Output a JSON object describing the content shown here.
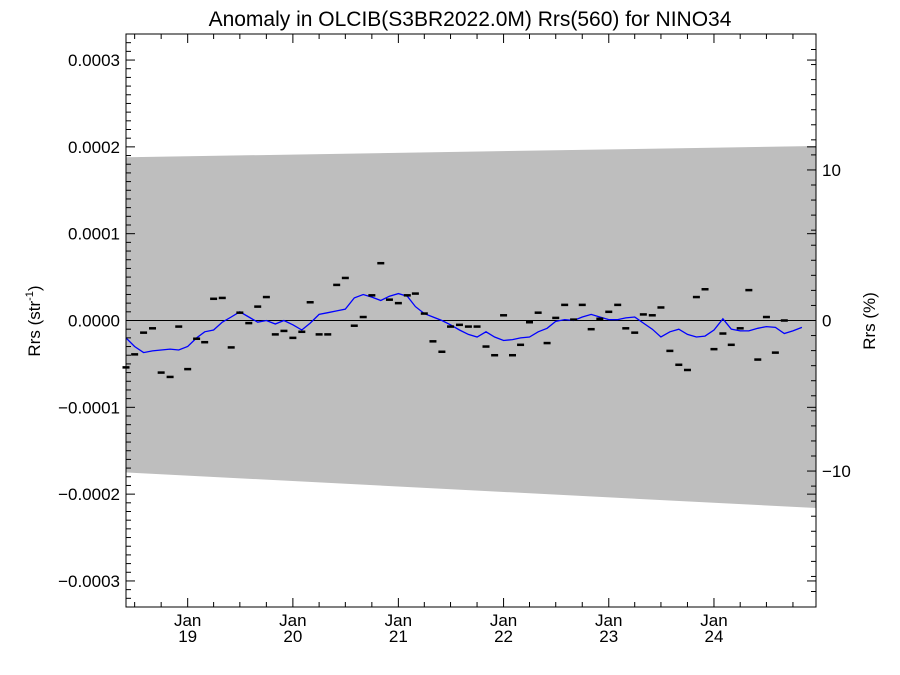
{
  "chart_data": {
    "type": "line",
    "title": "Anomaly in OLCIB(S3BR2022.0M) Rrs(560) for NINO34",
    "ylabel_left": "Rrs (str",
    "ylabel_left_sup": "-1",
    "ylabel_left_close": ")",
    "ylabel_right": "Rrs (%)",
    "xlim": [
      "2018-06-01",
      "2024-12-20"
    ],
    "ylim": [
      -0.00033,
      0.00033
    ],
    "ylim_right": [
      -19.03,
      19.03
    ],
    "y_ticks": [
      {
        "value": 0.0003,
        "label": "0.0003"
      },
      {
        "value": 0.0002,
        "label": "0.0002"
      },
      {
        "value": 0.0001,
        "label": "0.0001"
      },
      {
        "value": 0.0,
        "label": "0.0000"
      },
      {
        "value": -0.0001,
        "label": "−0.0001"
      },
      {
        "value": -0.0002,
        "label": "−0.0002"
      },
      {
        "value": -0.0003,
        "label": "−0.0003"
      }
    ],
    "y_right_ticks": [
      {
        "value": 10,
        "label": "10"
      },
      {
        "value": 0,
        "label": "0"
      },
      {
        "value": -10,
        "label": "−10"
      }
    ],
    "x_ticks": [
      {
        "value": "2019-01-01",
        "month": "Jan",
        "year": "19"
      },
      {
        "value": "2020-01-01",
        "month": "Jan",
        "year": "20"
      },
      {
        "value": "2021-01-01",
        "month": "Jan",
        "year": "21"
      },
      {
        "value": "2022-01-01",
        "month": "Jan",
        "year": "22"
      },
      {
        "value": "2023-01-01",
        "month": "Jan",
        "year": "23"
      },
      {
        "value": "2024-01-01",
        "month": "Jan",
        "year": "24"
      }
    ],
    "band": {
      "x": [
        "2018-06-01",
        "2024-12-20"
      ],
      "upper": [
        0.000188,
        0.000201
      ],
      "lower": [
        -0.000175,
        -0.000216
      ],
      "color": "#bebebe"
    },
    "zero_line": 0.0,
    "colors": {
      "smoothed": "#0000ff",
      "monthly": "#000000"
    },
    "monthly_anomalies": [
      {
        "x": "2018-06-01",
        "y": -5.4e-05
      },
      {
        "x": "2018-07-01",
        "y": -3.9e-05
      },
      {
        "x": "2018-08-01",
        "y": -1.4e-05
      },
      {
        "x": "2018-09-01",
        "y": -9e-06
      },
      {
        "x": "2018-10-01",
        "y": -6e-05
      },
      {
        "x": "2018-11-01",
        "y": -6.5e-05
      },
      {
        "x": "2018-12-01",
        "y": -7e-06
      },
      {
        "x": "2019-01-01",
        "y": -5.6e-05
      },
      {
        "x": "2019-02-01",
        "y": -2.1e-05
      },
      {
        "x": "2019-03-01",
        "y": -2.5e-05
      },
      {
        "x": "2019-04-01",
        "y": 2.5e-05
      },
      {
        "x": "2019-05-01",
        "y": 2.6e-05
      },
      {
        "x": "2019-06-01",
        "y": -3.1e-05
      },
      {
        "x": "2019-07-01",
        "y": 9e-06
      },
      {
        "x": "2019-08-01",
        "y": -3e-06
      },
      {
        "x": "2019-09-01",
        "y": 1.6e-05
      },
      {
        "x": "2019-10-01",
        "y": 2.7e-05
      },
      {
        "x": "2019-11-01",
        "y": -1.6e-05
      },
      {
        "x": "2019-12-01",
        "y": -1.2e-05
      },
      {
        "x": "2020-01-01",
        "y": -2e-05
      },
      {
        "x": "2020-02-01",
        "y": -1.3e-05
      },
      {
        "x": "2020-03-01",
        "y": 2.1e-05
      },
      {
        "x": "2020-04-01",
        "y": -1.6e-05
      },
      {
        "x": "2020-05-01",
        "y": -1.6e-05
      },
      {
        "x": "2020-06-01",
        "y": 4.1e-05
      },
      {
        "x": "2020-07-01",
        "y": 4.9e-05
      },
      {
        "x": "2020-08-01",
        "y": -6e-06
      },
      {
        "x": "2020-09-01",
        "y": 4e-06
      },
      {
        "x": "2020-10-01",
        "y": 2.9e-05
      },
      {
        "x": "2020-11-01",
        "y": 6.6e-05
      },
      {
        "x": "2020-12-01",
        "y": 2.4e-05
      },
      {
        "x": "2021-01-01",
        "y": 2e-05
      },
      {
        "x": "2021-02-01",
        "y": 2.9e-05
      },
      {
        "x": "2021-03-01",
        "y": 3.1e-05
      },
      {
        "x": "2021-04-01",
        "y": 8e-06
      },
      {
        "x": "2021-05-01",
        "y": -2.4e-05
      },
      {
        "x": "2021-06-01",
        "y": -3.6e-05
      },
      {
        "x": "2021-07-01",
        "y": -7e-06
      },
      {
        "x": "2021-08-01",
        "y": -5e-06
      },
      {
        "x": "2021-09-01",
        "y": -7e-06
      },
      {
        "x": "2021-10-01",
        "y": -7e-06
      },
      {
        "x": "2021-11-01",
        "y": -3e-05
      },
      {
        "x": "2021-12-01",
        "y": -4e-05
      },
      {
        "x": "2022-01-01",
        "y": 6e-06
      },
      {
        "x": "2022-02-01",
        "y": -4e-05
      },
      {
        "x": "2022-03-01",
        "y": -2.8e-05
      },
      {
        "x": "2022-04-01",
        "y": -2e-06
      },
      {
        "x": "2022-05-01",
        "y": 9e-06
      },
      {
        "x": "2022-06-01",
        "y": -2.6e-05
      },
      {
        "x": "2022-07-01",
        "y": 3e-06
      },
      {
        "x": "2022-08-01",
        "y": 1.8e-05
      },
      {
        "x": "2022-09-01",
        "y": 1e-06
      },
      {
        "x": "2022-10-01",
        "y": 1.8e-05
      },
      {
        "x": "2022-11-01",
        "y": -1e-05
      },
      {
        "x": "2022-12-01",
        "y": 2e-06
      },
      {
        "x": "2023-01-01",
        "y": 1e-05
      },
      {
        "x": "2023-02-01",
        "y": 1.8e-05
      },
      {
        "x": "2023-03-01",
        "y": -9e-06
      },
      {
        "x": "2023-04-01",
        "y": -1.4e-05
      },
      {
        "x": "2023-05-01",
        "y": 7e-06
      },
      {
        "x": "2023-06-01",
        "y": 6e-06
      },
      {
        "x": "2023-07-01",
        "y": 1.5e-05
      },
      {
        "x": "2023-08-01",
        "y": -3.5e-05
      },
      {
        "x": "2023-09-01",
        "y": -5.1e-05
      },
      {
        "x": "2023-10-01",
        "y": -5.7e-05
      },
      {
        "x": "2023-11-01",
        "y": 2.7e-05
      },
      {
        "x": "2023-12-01",
        "y": 3.6e-05
      },
      {
        "x": "2024-01-01",
        "y": -3.3e-05
      },
      {
        "x": "2024-02-01",
        "y": -1.5e-05
      },
      {
        "x": "2024-03-01",
        "y": -2.8e-05
      },
      {
        "x": "2024-04-01",
        "y": -9e-06
      },
      {
        "x": "2024-05-01",
        "y": 3.5e-05
      },
      {
        "x": "2024-06-01",
        "y": -4.5e-05
      },
      {
        "x": "2024-07-01",
        "y": 4e-06
      },
      {
        "x": "2024-08-01",
        "y": -3.7e-05
      },
      {
        "x": "2024-09-01",
        "y": 0.0
      }
    ],
    "smoothed_anomaly": [
      {
        "x": "2018-06-01",
        "y": -2e-05
      },
      {
        "x": "2018-07-01",
        "y": -3e-05
      },
      {
        "x": "2018-08-01",
        "y": -3.7e-05
      },
      {
        "x": "2018-09-01",
        "y": -3.5e-05
      },
      {
        "x": "2018-10-01",
        "y": -3.4e-05
      },
      {
        "x": "2018-11-01",
        "y": -3.3e-05
      },
      {
        "x": "2018-12-01",
        "y": -3.4e-05
      },
      {
        "x": "2019-01-01",
        "y": -3e-05
      },
      {
        "x": "2019-02-01",
        "y": -2e-05
      },
      {
        "x": "2019-03-01",
        "y": -1.3e-05
      },
      {
        "x": "2019-04-01",
        "y": -1.1e-05
      },
      {
        "x": "2019-05-01",
        "y": -2e-06
      },
      {
        "x": "2019-06-01",
        "y": 4e-06
      },
      {
        "x": "2019-07-01",
        "y": 1e-05
      },
      {
        "x": "2019-08-01",
        "y": 4e-06
      },
      {
        "x": "2019-09-01",
        "y": -2e-06
      },
      {
        "x": "2019-10-01",
        "y": 0.0
      },
      {
        "x": "2019-11-01",
        "y": -4e-06
      },
      {
        "x": "2019-12-01",
        "y": 0.0
      },
      {
        "x": "2020-01-01",
        "y": -5e-06
      },
      {
        "x": "2020-02-01",
        "y": -1.1e-05
      },
      {
        "x": "2020-03-01",
        "y": -3e-06
      },
      {
        "x": "2020-04-01",
        "y": 7e-06
      },
      {
        "x": "2020-05-01",
        "y": 9e-06
      },
      {
        "x": "2020-06-01",
        "y": 1.1e-05
      },
      {
        "x": "2020-07-01",
        "y": 1.3e-05
      },
      {
        "x": "2020-08-01",
        "y": 2.6e-05
      },
      {
        "x": "2020-09-01",
        "y": 3e-05
      },
      {
        "x": "2020-10-01",
        "y": 2.7e-05
      },
      {
        "x": "2020-11-01",
        "y": 2.3e-05
      },
      {
        "x": "2020-12-01",
        "y": 2.8e-05
      },
      {
        "x": "2021-01-01",
        "y": 3.1e-05
      },
      {
        "x": "2021-02-01",
        "y": 2.8e-05
      },
      {
        "x": "2021-03-01",
        "y": 1.6e-05
      },
      {
        "x": "2021-04-01",
        "y": 8e-06
      },
      {
        "x": "2021-05-01",
        "y": 4e-06
      },
      {
        "x": "2021-06-01",
        "y": 0.0
      },
      {
        "x": "2021-07-01",
        "y": -5e-06
      },
      {
        "x": "2021-08-01",
        "y": -1.1e-05
      },
      {
        "x": "2021-09-01",
        "y": -1.6e-05
      },
      {
        "x": "2021-10-01",
        "y": -1.9e-05
      },
      {
        "x": "2021-11-01",
        "y": -1.3e-05
      },
      {
        "x": "2021-12-01",
        "y": -1.9e-05
      },
      {
        "x": "2022-01-01",
        "y": -2.3e-05
      },
      {
        "x": "2022-02-01",
        "y": -2.2e-05
      },
      {
        "x": "2022-03-01",
        "y": -2e-05
      },
      {
        "x": "2022-04-01",
        "y": -1.9e-05
      },
      {
        "x": "2022-05-01",
        "y": -1.3e-05
      },
      {
        "x": "2022-06-01",
        "y": -9e-06
      },
      {
        "x": "2022-07-01",
        "y": -1e-06
      },
      {
        "x": "2022-08-01",
        "y": 1e-06
      },
      {
        "x": "2022-09-01",
        "y": 0.0
      },
      {
        "x": "2022-10-01",
        "y": 4e-06
      },
      {
        "x": "2022-11-01",
        "y": 7e-06
      },
      {
        "x": "2022-12-01",
        "y": 4e-06
      },
      {
        "x": "2023-01-01",
        "y": 1e-06
      },
      {
        "x": "2023-02-01",
        "y": 1e-06
      },
      {
        "x": "2023-03-01",
        "y": 3e-06
      },
      {
        "x": "2023-04-01",
        "y": 4e-06
      },
      {
        "x": "2023-05-01",
        "y": -3e-06
      },
      {
        "x": "2023-06-01",
        "y": -1e-05
      },
      {
        "x": "2023-07-01",
        "y": -1.9e-05
      },
      {
        "x": "2023-08-01",
        "y": -1.3e-05
      },
      {
        "x": "2023-09-01",
        "y": -1e-05
      },
      {
        "x": "2023-10-01",
        "y": -1.6e-05
      },
      {
        "x": "2023-11-01",
        "y": -1.9e-05
      },
      {
        "x": "2023-12-01",
        "y": -1.8e-05
      },
      {
        "x": "2024-01-01",
        "y": -1.1e-05
      },
      {
        "x": "2024-02-01",
        "y": 2e-06
      },
      {
        "x": "2024-03-01",
        "y": -1e-05
      },
      {
        "x": "2024-04-01",
        "y": -1.2e-05
      },
      {
        "x": "2024-05-01",
        "y": -1.2e-05
      },
      {
        "x": "2024-06-01",
        "y": -9e-06
      },
      {
        "x": "2024-07-01",
        "y": -7e-06
      },
      {
        "x": "2024-08-01",
        "y": -8e-06
      },
      {
        "x": "2024-09-01",
        "y": -1.5e-05
      },
      {
        "x": "2024-10-01",
        "y": -1.2e-05
      },
      {
        "x": "2024-11-01",
        "y": -8e-06
      }
    ]
  }
}
